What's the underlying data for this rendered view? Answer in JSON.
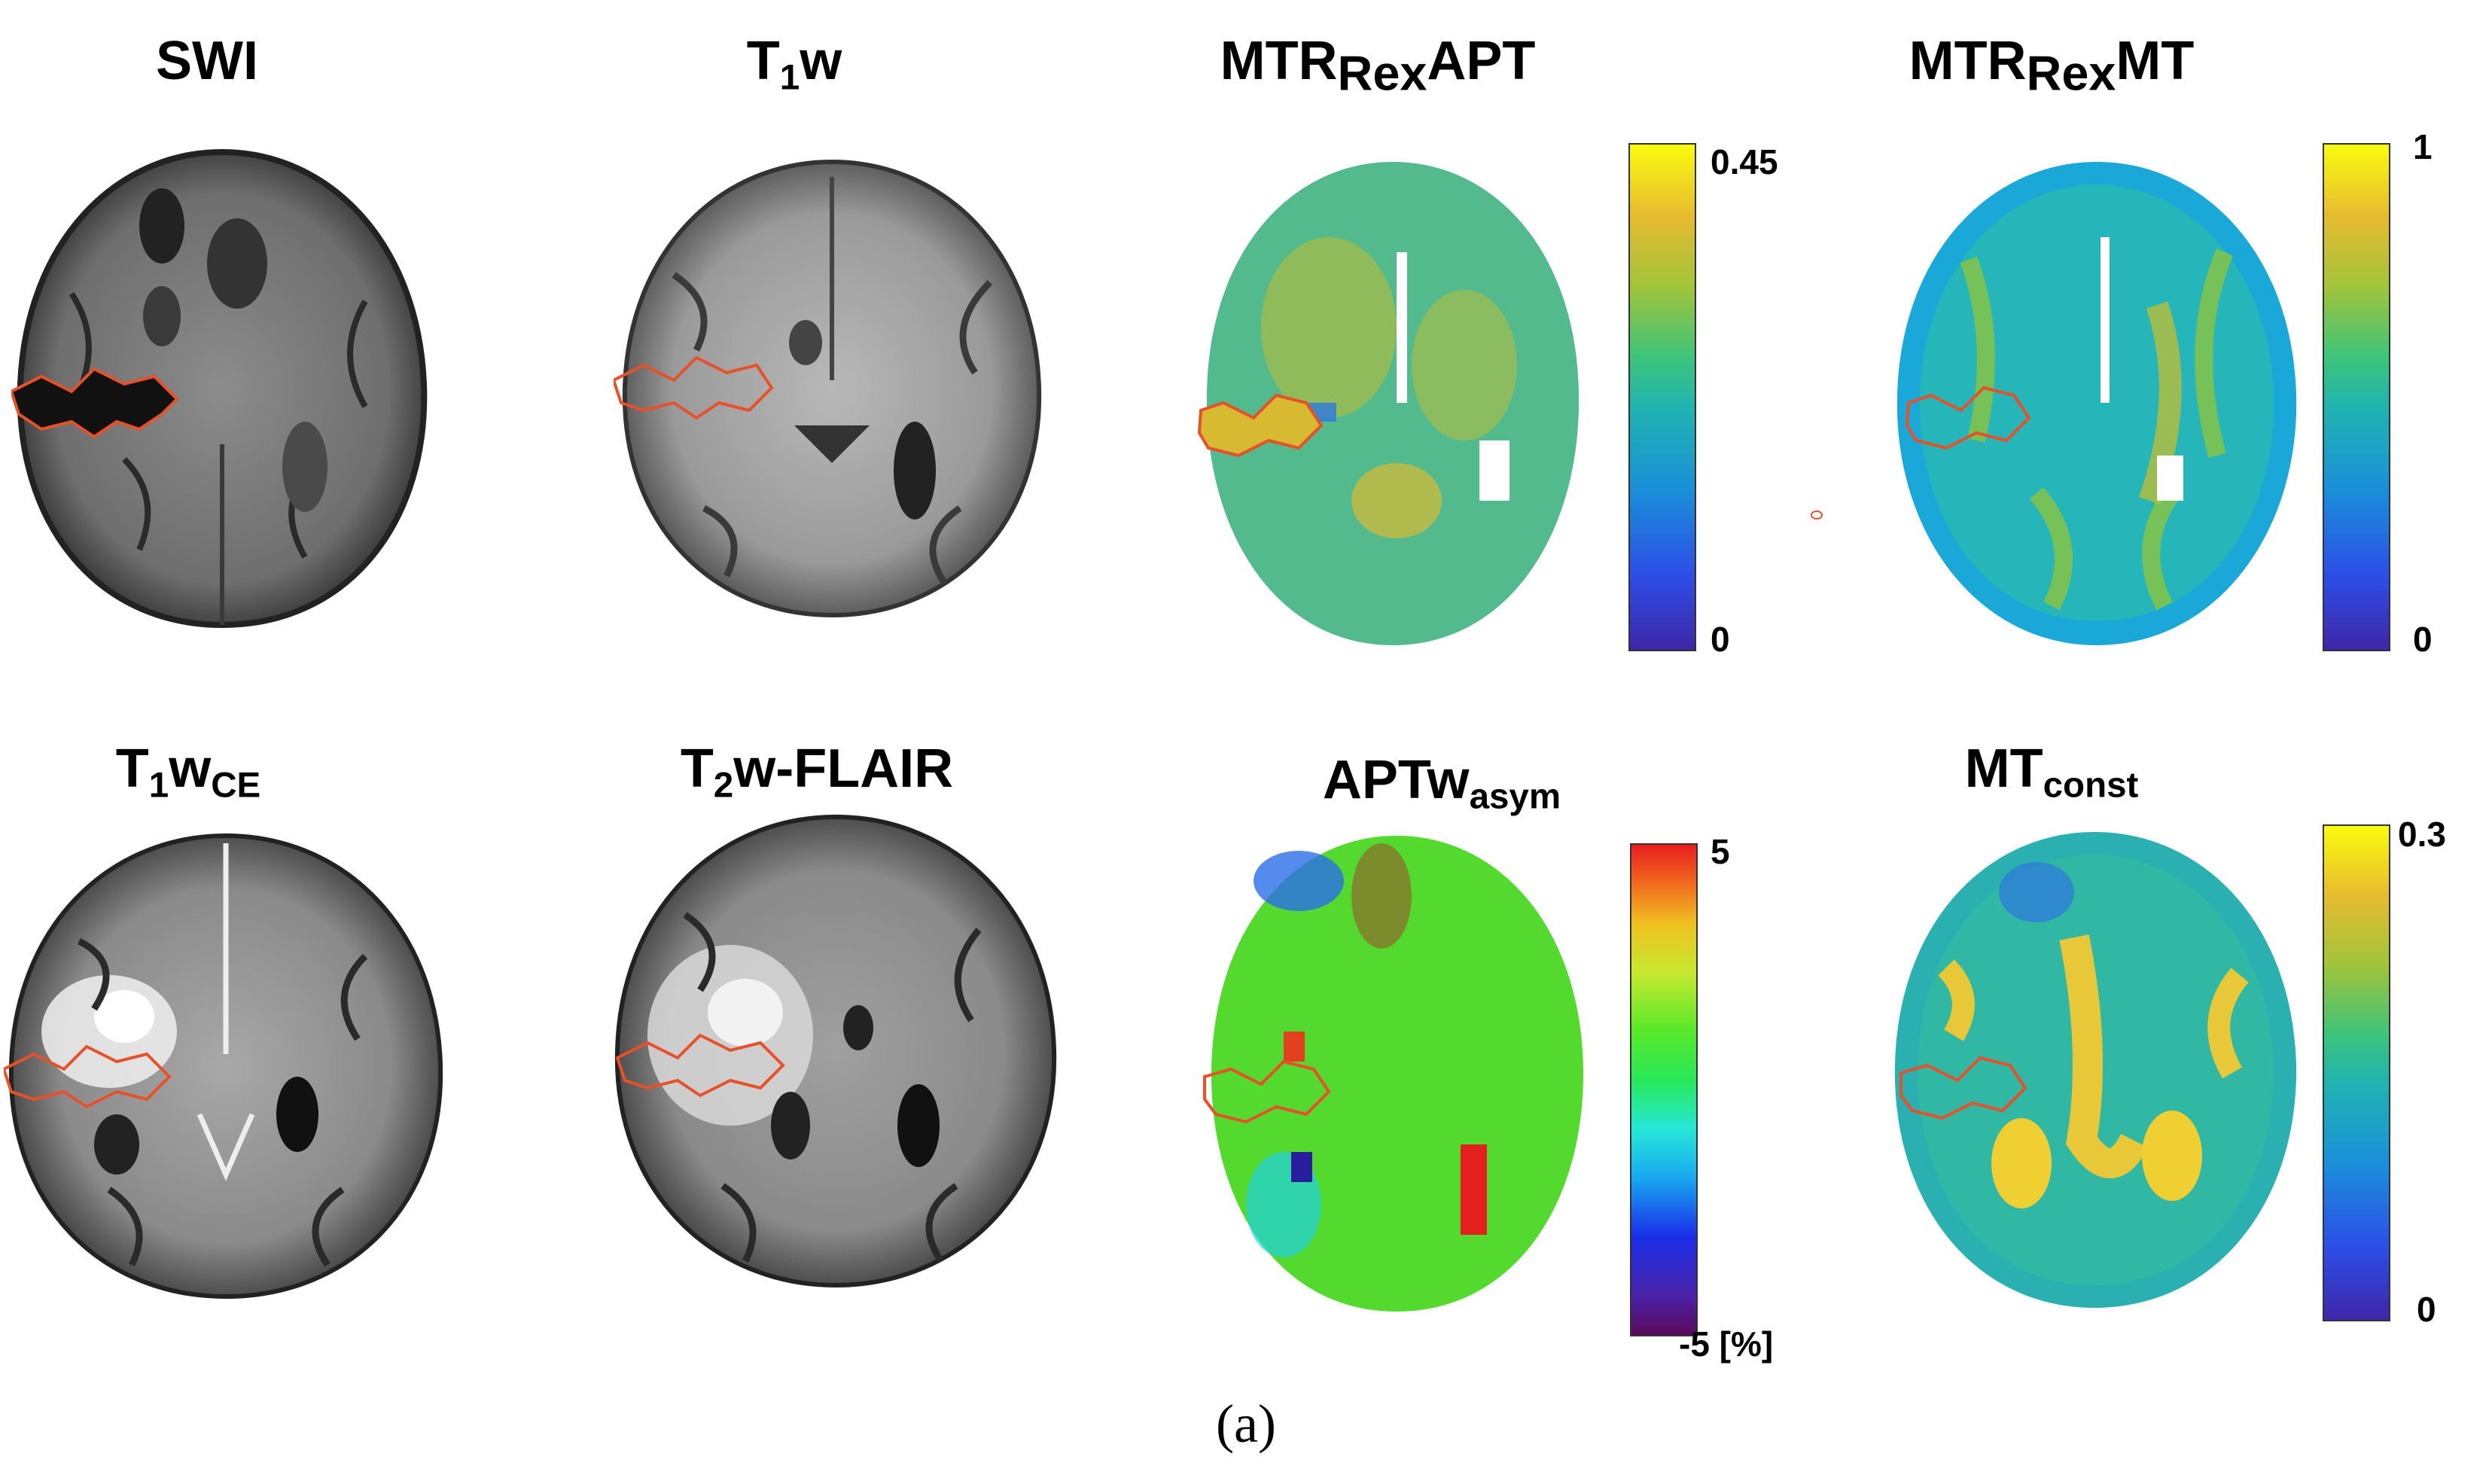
{
  "titles": {
    "swi": "SWI",
    "t1w_main": "T",
    "t1w_sub": "1",
    "t1w_tail": "w",
    "mtrapt_main": "MTR",
    "mtrapt_sub": "Rex",
    "mtrapt_tail": "APT",
    "mtrmt_main": "MTR",
    "mtrmt_sub": "Rex",
    "mtrmt_tail": "MT",
    "t1wce_main": "T",
    "t1wce_sub1": "1",
    "t1wce_mid": "w",
    "t1wce_sub2": "CE",
    "flair_main": "T",
    "flair_sub": "2",
    "flair_tail": "w-FLAIR",
    "apt_main": "APTw",
    "apt_sub": "asym",
    "mtc_main": "MT",
    "mtc_sub": "const"
  },
  "colorbars": {
    "mtrapt": {
      "max": "0.45",
      "min": "0"
    },
    "mtrmt": {
      "max": "1",
      "min": "0"
    },
    "apt": {
      "max": "5",
      "min": "-5 [%]"
    },
    "mtc": {
      "max": "0.3",
      "min": "0"
    }
  },
  "caption": "(a)",
  "colors": {
    "roi_outline": "#e8502a",
    "parula_low": "#3e26a8",
    "parula_high": "#f9fb0e"
  }
}
